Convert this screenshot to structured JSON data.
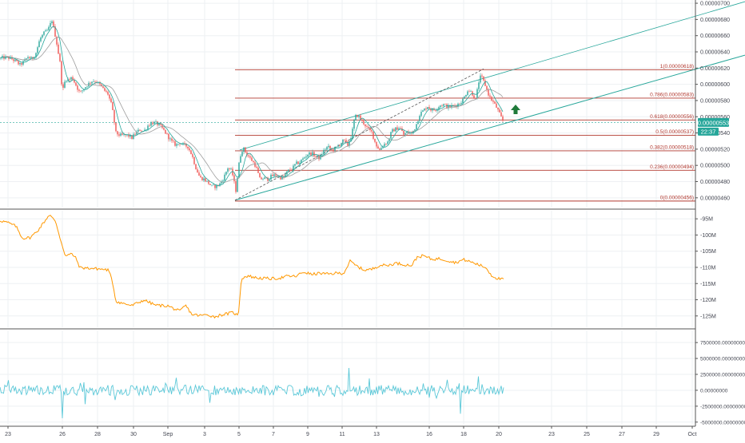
{
  "colors": {
    "grid": "#eef0f3",
    "separator": "#555555",
    "axis_text": "#434651",
    "candle_up": "#26a69a",
    "candle_down": "#ef5350",
    "ma_fast": "#26a69a",
    "ma_slow": "#9e9e9e",
    "fib": "#b2392f",
    "channel": "#26a69a",
    "middle_line": "#ff9800",
    "oscillator": "#5bc8d8",
    "price_tag": "#26a69a",
    "arrow": "#1f7a3a"
  },
  "chart_data": [
    {
      "type": "candlestick",
      "panel": "price",
      "x_labels": [
        "23",
        "26",
        "28",
        "30",
        "Sep",
        "3",
        "5",
        "7",
        "9",
        "11",
        "13",
        "16",
        "18",
        "20",
        "23",
        "25",
        "27",
        "29",
        "Oct"
      ],
      "ylim": [
        4.48e-06,
        7.04e-06
      ],
      "y_ticks": [
        4.6e-06,
        4.8e-06,
        5e-06,
        5.2e-06,
        5.4e-06,
        5.6e-06,
        5.8e-06,
        6e-06,
        6.2e-06,
        6.4e-06,
        6.6e-06,
        6.8e-06,
        7e-06
      ],
      "y_tick_labels": [
        "0.00000460",
        "0.00000480",
        "0.00000500",
        "0.00000520",
        "0.00000540",
        "0.00000560",
        "0.00000580",
        "0.00000600",
        "0.00000620",
        "0.00000640",
        "0.00000660",
        "0.00000680",
        "0.00000700"
      ],
      "close_path": [
        [
          0,
          6.318e-06
        ],
        [
          5,
          6.33e-06
        ],
        [
          10,
          6.33e-06
        ],
        [
          15,
          6.31e-06
        ],
        [
          20,
          6.28e-06
        ],
        [
          25,
          6.24e-06
        ],
        [
          30,
          6.28e-06
        ],
        [
          35,
          6.34e-06
        ],
        [
          40,
          6.31e-06
        ],
        [
          45,
          6.39e-06
        ],
        [
          50,
          6.56e-06
        ],
        [
          55,
          6.63e-06
        ],
        [
          60,
          6.67e-06
        ],
        [
          65,
          6.79e-06
        ],
        [
          70,
          6.56e-06
        ],
        [
          75,
          6.27e-06
        ],
        [
          78,
          5.9e-06
        ],
        [
          82,
          6.07e-06
        ],
        [
          86,
          6.05e-06
        ],
        [
          90,
          6.09e-06
        ],
        [
          95,
          5.99e-06
        ],
        [
          100,
          5.89e-06
        ],
        [
          105,
          5.95e-06
        ],
        [
          110,
          6e-06
        ],
        [
          115,
          6.04e-06
        ],
        [
          120,
          6.04e-06
        ],
        [
          125,
          5.99e-06
        ],
        [
          130,
          5.93e-06
        ],
        [
          135,
          5.88e-06
        ],
        [
          140,
          5.73e-06
        ],
        [
          145,
          5.4e-06
        ],
        [
          150,
          5.37e-06
        ],
        [
          155,
          5.37e-06
        ],
        [
          160,
          5.37e-06
        ],
        [
          165,
          5.34e-06
        ],
        [
          170,
          5.4e-06
        ],
        [
          175,
          5.44e-06
        ],
        [
          180,
          5.42e-06
        ],
        [
          185,
          5.49e-06
        ],
        [
          190,
          5.53e-06
        ],
        [
          195,
          5.52e-06
        ],
        [
          200,
          5.49e-06
        ],
        [
          205,
          5.43e-06
        ],
        [
          210,
          5.36e-06
        ],
        [
          215,
          5.29e-06
        ],
        [
          220,
          5.25e-06
        ],
        [
          225,
          5.28e-06
        ],
        [
          230,
          5.25e-06
        ],
        [
          235,
          5.23e-06
        ],
        [
          240,
          5.13e-06
        ],
        [
          245,
          4.97e-06
        ],
        [
          250,
          4.85e-06
        ],
        [
          255,
          4.83e-06
        ],
        [
          260,
          4.79e-06
        ],
        [
          265,
          4.74e-06
        ],
        [
          270,
          4.74e-06
        ],
        [
          275,
          4.77e-06
        ],
        [
          280,
          4.85e-06
        ],
        [
          285,
          4.97e-06
        ],
        [
          290,
          4.93e-06
        ],
        [
          295,
          4.69e-06
        ],
        [
          300,
          5.1e-06
        ],
        [
          304,
          5.22e-06
        ],
        [
          308,
          5.15e-06
        ],
        [
          312,
          5.1e-06
        ],
        [
          316,
          5.05e-06
        ],
        [
          320,
          4.99e-06
        ],
        [
          325,
          4.83e-06
        ],
        [
          330,
          4.84e-06
        ],
        [
          335,
          4.83e-06
        ],
        [
          340,
          4.87e-06
        ],
        [
          345,
          4.88e-06
        ],
        [
          350,
          4.85e-06
        ],
        [
          355,
          4.85e-06
        ],
        [
          360,
          4.93e-06
        ],
        [
          365,
          4.95e-06
        ],
        [
          370,
          5.02e-06
        ],
        [
          375,
          5.04e-06
        ],
        [
          380,
          5.09e-06
        ],
        [
          385,
          5.14e-06
        ],
        [
          390,
          5.15e-06
        ],
        [
          395,
          5.11e-06
        ],
        [
          400,
          5.09e-06
        ],
        [
          405,
          5.18e-06
        ],
        [
          410,
          5.23e-06
        ],
        [
          415,
          5.19e-06
        ],
        [
          420,
          5.21e-06
        ],
        [
          425,
          5.26e-06
        ],
        [
          430,
          5.31e-06
        ],
        [
          435,
          5.25e-06
        ],
        [
          440,
          5.38e-06
        ],
        [
          444,
          5.6e-06
        ],
        [
          448,
          5.62e-06
        ],
        [
          452,
          5.55e-06
        ],
        [
          456,
          5.51e-06
        ],
        [
          460,
          5.45e-06
        ],
        [
          465,
          5.41e-06
        ],
        [
          470,
          5.26e-06
        ],
        [
          475,
          5.19e-06
        ],
        [
          480,
          5.26e-06
        ],
        [
          485,
          5.29e-06
        ],
        [
          490,
          5.42e-06
        ],
        [
          495,
          5.45e-06
        ],
        [
          500,
          5.47e-06
        ],
        [
          505,
          5.38e-06
        ],
        [
          510,
          5.41e-06
        ],
        [
          515,
          5.39e-06
        ],
        [
          520,
          5.48e-06
        ],
        [
          525,
          5.63e-06
        ],
        [
          530,
          5.68e-06
        ],
        [
          535,
          5.73e-06
        ],
        [
          540,
          5.68e-06
        ],
        [
          545,
          5.69e-06
        ],
        [
          550,
          5.74e-06
        ],
        [
          555,
          5.75e-06
        ],
        [
          560,
          5.72e-06
        ],
        [
          565,
          5.73e-06
        ],
        [
          570,
          5.74e-06
        ],
        [
          575,
          5.77e-06
        ],
        [
          580,
          5.82e-06
        ],
        [
          585,
          5.93e-06
        ],
        [
          590,
          5.9e-06
        ],
        [
          595,
          5.81e-06
        ],
        [
          600,
          6.09e-06
        ],
        [
          603,
          6.08e-06
        ],
        [
          607,
          5.99e-06
        ],
        [
          612,
          5.85e-06
        ],
        [
          617,
          5.78e-06
        ],
        [
          622,
          5.7e-06
        ],
        [
          626,
          5.61e-06
        ],
        [
          629,
          5.55e-06
        ]
      ]
    },
    {
      "type": "line",
      "panel": "middle",
      "ylim": [
        -128.5,
        -92.5
      ],
      "y_ticks": [
        -95,
        -100,
        -105,
        -110,
        -115,
        -120,
        -125
      ],
      "y_tick_labels": [
        "-95M",
        "-100M",
        "-105M",
        "-110M",
        "-115M",
        "-120M",
        "-125M"
      ],
      "points": [
        [
          0,
          -95.5
        ],
        [
          10,
          -96.2
        ],
        [
          20,
          -97.3
        ],
        [
          28,
          -101
        ],
        [
          38,
          -100.8
        ],
        [
          48,
          -98.4
        ],
        [
          56,
          -95.7
        ],
        [
          62,
          -93.6
        ],
        [
          70,
          -96.2
        ],
        [
          76,
          -101.7
        ],
        [
          82,
          -106.5
        ],
        [
          90,
          -105.8
        ],
        [
          95,
          -107.2
        ],
        [
          100,
          -110.1
        ],
        [
          115,
          -110.3
        ],
        [
          125,
          -110.5
        ],
        [
          135,
          -110.8
        ],
        [
          140,
          -113.5
        ],
        [
          145,
          -120.5
        ],
        [
          155,
          -121.2
        ],
        [
          165,
          -121.8
        ],
        [
          180,
          -120.1
        ],
        [
          195,
          -121.7
        ],
        [
          210,
          -121.9
        ],
        [
          225,
          -123.6
        ],
        [
          232,
          -121.7
        ],
        [
          240,
          -124.5
        ],
        [
          250,
          -124.9
        ],
        [
          260,
          -124.6
        ],
        [
          268,
          -125.3
        ],
        [
          276,
          -124.7
        ],
        [
          285,
          -124.3
        ],
        [
          292,
          -123.9
        ],
        [
          298,
          -125.1
        ],
        [
          302,
          -113.4
        ],
        [
          310,
          -112.6
        ],
        [
          320,
          -113.2
        ],
        [
          330,
          -113.4
        ],
        [
          340,
          -113.5
        ],
        [
          350,
          -113.3
        ],
        [
          360,
          -112.7
        ],
        [
          370,
          -112.8
        ],
        [
          380,
          -111.4
        ],
        [
          390,
          -112.2
        ],
        [
          400,
          -111.8
        ],
        [
          410,
          -112.1
        ],
        [
          420,
          -111.8
        ],
        [
          430,
          -111.8
        ],
        [
          438,
          -108.1
        ],
        [
          445,
          -109.4
        ],
        [
          455,
          -110.8
        ],
        [
          465,
          -110.6
        ],
        [
          475,
          -109.3
        ],
        [
          485,
          -109.4
        ],
        [
          495,
          -108.7
        ],
        [
          505,
          -109.1
        ],
        [
          515,
          -109.4
        ],
        [
          522,
          -106.8
        ],
        [
          530,
          -106.4
        ],
        [
          540,
          -107.5
        ],
        [
          550,
          -107.3
        ],
        [
          560,
          -107.9
        ],
        [
          570,
          -108.5
        ],
        [
          580,
          -107.6
        ],
        [
          590,
          -108.4
        ],
        [
          600,
          -109.3
        ],
        [
          608,
          -110.1
        ],
        [
          615,
          -112.5
        ],
        [
          622,
          -113.4
        ],
        [
          630,
          -113.8
        ]
      ]
    },
    {
      "type": "line",
      "panel": "oscillator",
      "ylim": [
        -5400000,
        9400000
      ],
      "y_ticks": [
        7500000,
        5000000,
        2500000,
        0,
        -2500000,
        -5000000
      ],
      "y_tick_labels": [
        "7500000.00000000",
        "5000000.00000000",
        "2500000.00000000",
        "0.00000000",
        "-2500000.00000000",
        "-5000000.00000000"
      ],
      "spikes": [
        [
          67,
          3800000
        ],
        [
          78,
          -4400000
        ],
        [
          232,
          -3500000
        ],
        [
          301,
          9000000
        ],
        [
          437,
          3500000
        ],
        [
          442,
          2800000
        ],
        [
          576,
          -3700000
        ]
      ]
    }
  ],
  "fib_levels": [
    {
      "label": "1(0.00000618)",
      "value": 6.18e-06
    },
    {
      "label": "0.786(0.00000583)",
      "value": 5.83e-06
    },
    {
      "label": "0.618(0.00000556)",
      "value": 5.56e-06
    },
    {
      "label": "0.5(0.00000537)",
      "value": 5.37e-06
    },
    {
      "label": "0.382(0.00000518)",
      "value": 5.18e-06
    },
    {
      "label": "0.236(0.00000494)",
      "value": 4.94e-06
    },
    {
      "label": "0(0.00000456)",
      "value": 4.56e-06
    }
  ],
  "channel": {
    "lower": [
      [
        294,
        4.57e-06
      ],
      [
        932,
        6.36e-06
      ]
    ],
    "upper": [
      [
        300,
        5.19e-06
      ],
      [
        932,
        7.02e-06
      ]
    ],
    "dashed": [
      [
        294,
        4.57e-06
      ],
      [
        605,
        6.19e-06
      ]
    ]
  },
  "price_tag": {
    "value": "0.00000553",
    "time": "22:37",
    "price": 5.53e-06
  },
  "current_price_line": 5.53e-06,
  "arrow": "up-arrow"
}
